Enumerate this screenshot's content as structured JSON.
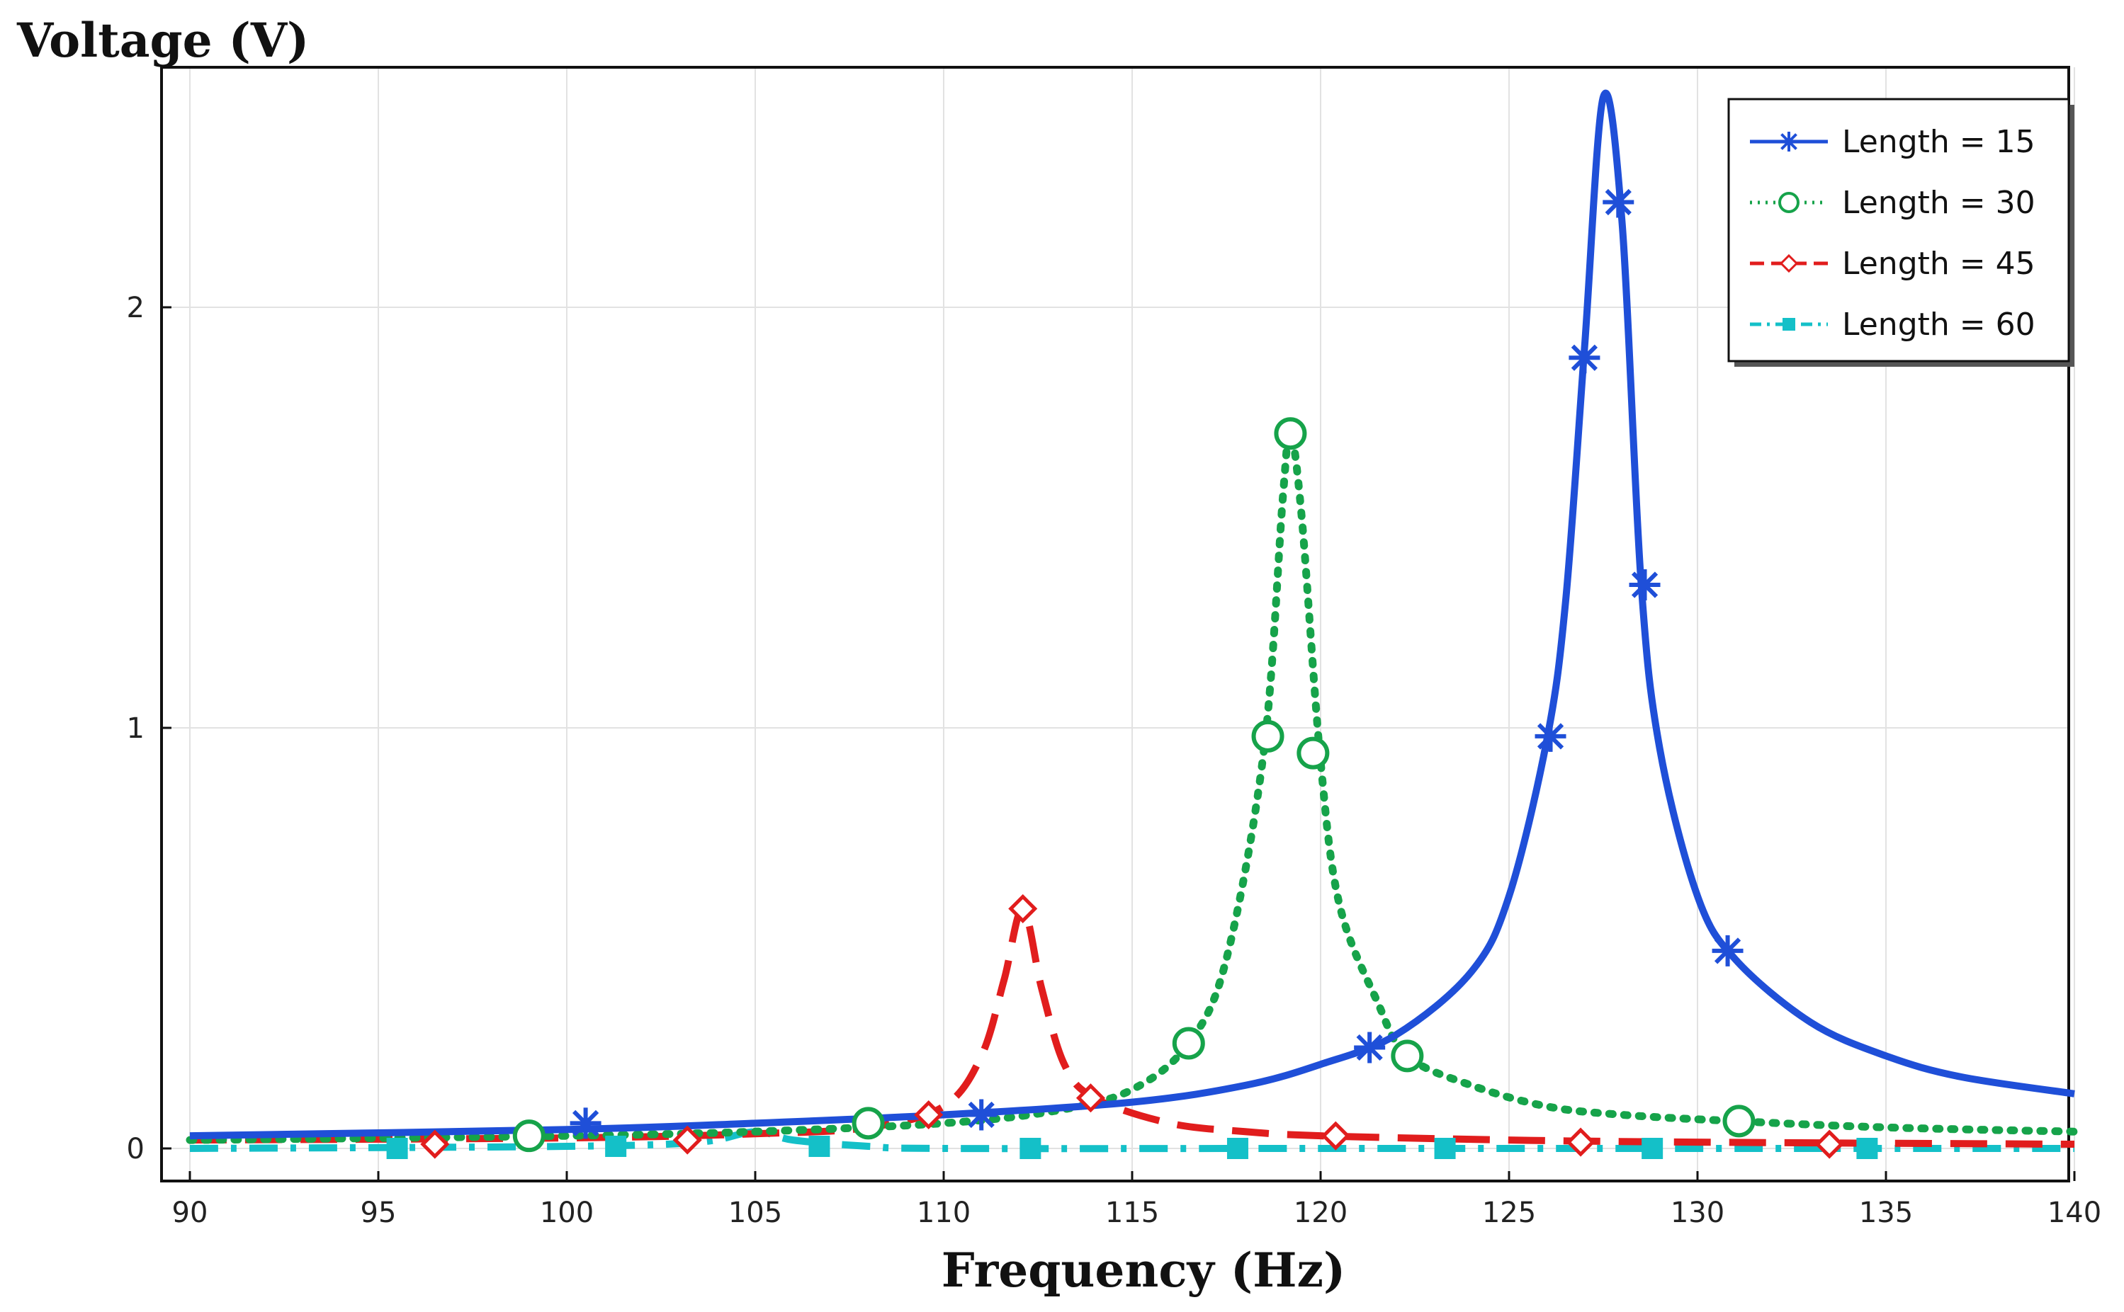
{
  "chart_data": {
    "type": "line",
    "title": "",
    "ylabel": "Voltage (V)",
    "xlabel": "Frequency (Hz)",
    "xlim": [
      90,
      140
    ],
    "ylim": [
      0,
      2.5
    ],
    "xticks": [
      90,
      95,
      100,
      105,
      110,
      115,
      120,
      125,
      130,
      135,
      140
    ],
    "yticks": [
      0,
      1,
      2
    ],
    "grid": true,
    "legend_position": "top-right",
    "series": [
      {
        "name": "Length = 15",
        "color": "#1f4fd8",
        "line_style": "solid",
        "marker": "star",
        "resonance_hz": 127.5,
        "peak_v": 2.5,
        "points": [
          [
            90,
            0.03
          ],
          [
            100,
            0.045
          ],
          [
            105,
            0.06
          ],
          [
            110,
            0.08
          ],
          [
            115,
            0.11
          ],
          [
            118,
            0.15
          ],
          [
            120,
            0.2
          ],
          [
            122,
            0.27
          ],
          [
            124,
            0.42
          ],
          [
            125,
            0.6
          ],
          [
            126,
            0.97
          ],
          [
            126.5,
            1.3
          ],
          [
            127,
            1.9
          ],
          [
            127.5,
            2.5
          ],
          [
            128,
            2.2
          ],
          [
            128.5,
            1.35
          ],
          [
            129,
            0.95
          ],
          [
            130,
            0.6
          ],
          [
            131,
            0.45
          ],
          [
            133,
            0.3
          ],
          [
            135,
            0.22
          ],
          [
            137,
            0.17
          ],
          [
            140,
            0.13
          ]
        ],
        "markers": [
          [
            100.5,
            0.06
          ],
          [
            111,
            0.08
          ],
          [
            121.3,
            0.24
          ],
          [
            126.1,
            0.98
          ],
          [
            127,
            1.88
          ],
          [
            127.9,
            2.25
          ],
          [
            128.6,
            1.34
          ],
          [
            130.8,
            0.47
          ]
        ]
      },
      {
        "name": "Length = 30",
        "color": "#16a34a",
        "line_style": "dotted",
        "marker": "circle",
        "resonance_hz": 119.2,
        "peak_v": 1.7,
        "points": [
          [
            90,
            0.02
          ],
          [
            100,
            0.03
          ],
          [
            105,
            0.04
          ],
          [
            110,
            0.06
          ],
          [
            113,
            0.09
          ],
          [
            115,
            0.14
          ],
          [
            116.5,
            0.25
          ],
          [
            117.5,
            0.45
          ],
          [
            118.5,
            0.95
          ],
          [
            119,
            1.55
          ],
          [
            119.2,
            1.7
          ],
          [
            119.5,
            1.5
          ],
          [
            120,
            0.92
          ],
          [
            120.5,
            0.58
          ],
          [
            121.5,
            0.35
          ],
          [
            122.3,
            0.22
          ],
          [
            124,
            0.15
          ],
          [
            126,
            0.1
          ],
          [
            128,
            0.08
          ],
          [
            131,
            0.065
          ],
          [
            135,
            0.05
          ],
          [
            140,
            0.04
          ]
        ],
        "markers": [
          [
            99,
            0.03
          ],
          [
            108,
            0.06
          ],
          [
            116.5,
            0.25
          ],
          [
            118.6,
            0.98
          ],
          [
            119.2,
            1.7
          ],
          [
            119.8,
            0.94
          ],
          [
            122.3,
            0.22
          ],
          [
            131.1,
            0.065
          ]
        ]
      },
      {
        "name": "Length = 45",
        "color": "#e11d1d",
        "line_style": "dashed",
        "marker": "diamond",
        "resonance_hz": 112.1,
        "peak_v": 0.57,
        "points": [
          [
            90,
            0.02
          ],
          [
            100,
            0.025
          ],
          [
            105,
            0.035
          ],
          [
            108,
            0.05
          ],
          [
            110,
            0.1
          ],
          [
            111,
            0.22
          ],
          [
            111.6,
            0.4
          ],
          [
            112.1,
            0.57
          ],
          [
            112.6,
            0.38
          ],
          [
            113.2,
            0.2
          ],
          [
            114,
            0.12
          ],
          [
            116,
            0.06
          ],
          [
            118,
            0.04
          ],
          [
            120,
            0.03
          ],
          [
            125,
            0.02
          ],
          [
            130,
            0.015
          ],
          [
            140,
            0.01
          ]
        ],
        "markers": [
          [
            96.5,
            0.01
          ],
          [
            103.2,
            0.02
          ],
          [
            109.6,
            0.08
          ],
          [
            112.1,
            0.57
          ],
          [
            113.9,
            0.12
          ],
          [
            120.4,
            0.03
          ],
          [
            126.9,
            0.015
          ],
          [
            133.5,
            0.01
          ]
        ]
      },
      {
        "name": "Length = 60",
        "color": "#14c0c8",
        "line_style": "dashdot",
        "marker": "square",
        "resonance_hz": 105,
        "peak_v": 0.04,
        "points": [
          [
            90,
            0.0
          ],
          [
            100,
            0.005
          ],
          [
            103.5,
            0.015
          ],
          [
            105,
            0.04
          ],
          [
            106,
            0.02
          ],
          [
            108,
            0.005
          ],
          [
            110,
            0.0
          ],
          [
            120,
            0.0
          ],
          [
            130,
            0.0
          ],
          [
            140,
            0.0
          ]
        ],
        "markers": [
          [
            95.5,
            0.0
          ],
          [
            101.3,
            0.005
          ],
          [
            106.7,
            0.005
          ],
          [
            112.3,
            0.0
          ],
          [
            117.8,
            0.0
          ],
          [
            123.3,
            0.0
          ],
          [
            128.8,
            0.0
          ],
          [
            134.5,
            0.0
          ]
        ]
      }
    ]
  }
}
